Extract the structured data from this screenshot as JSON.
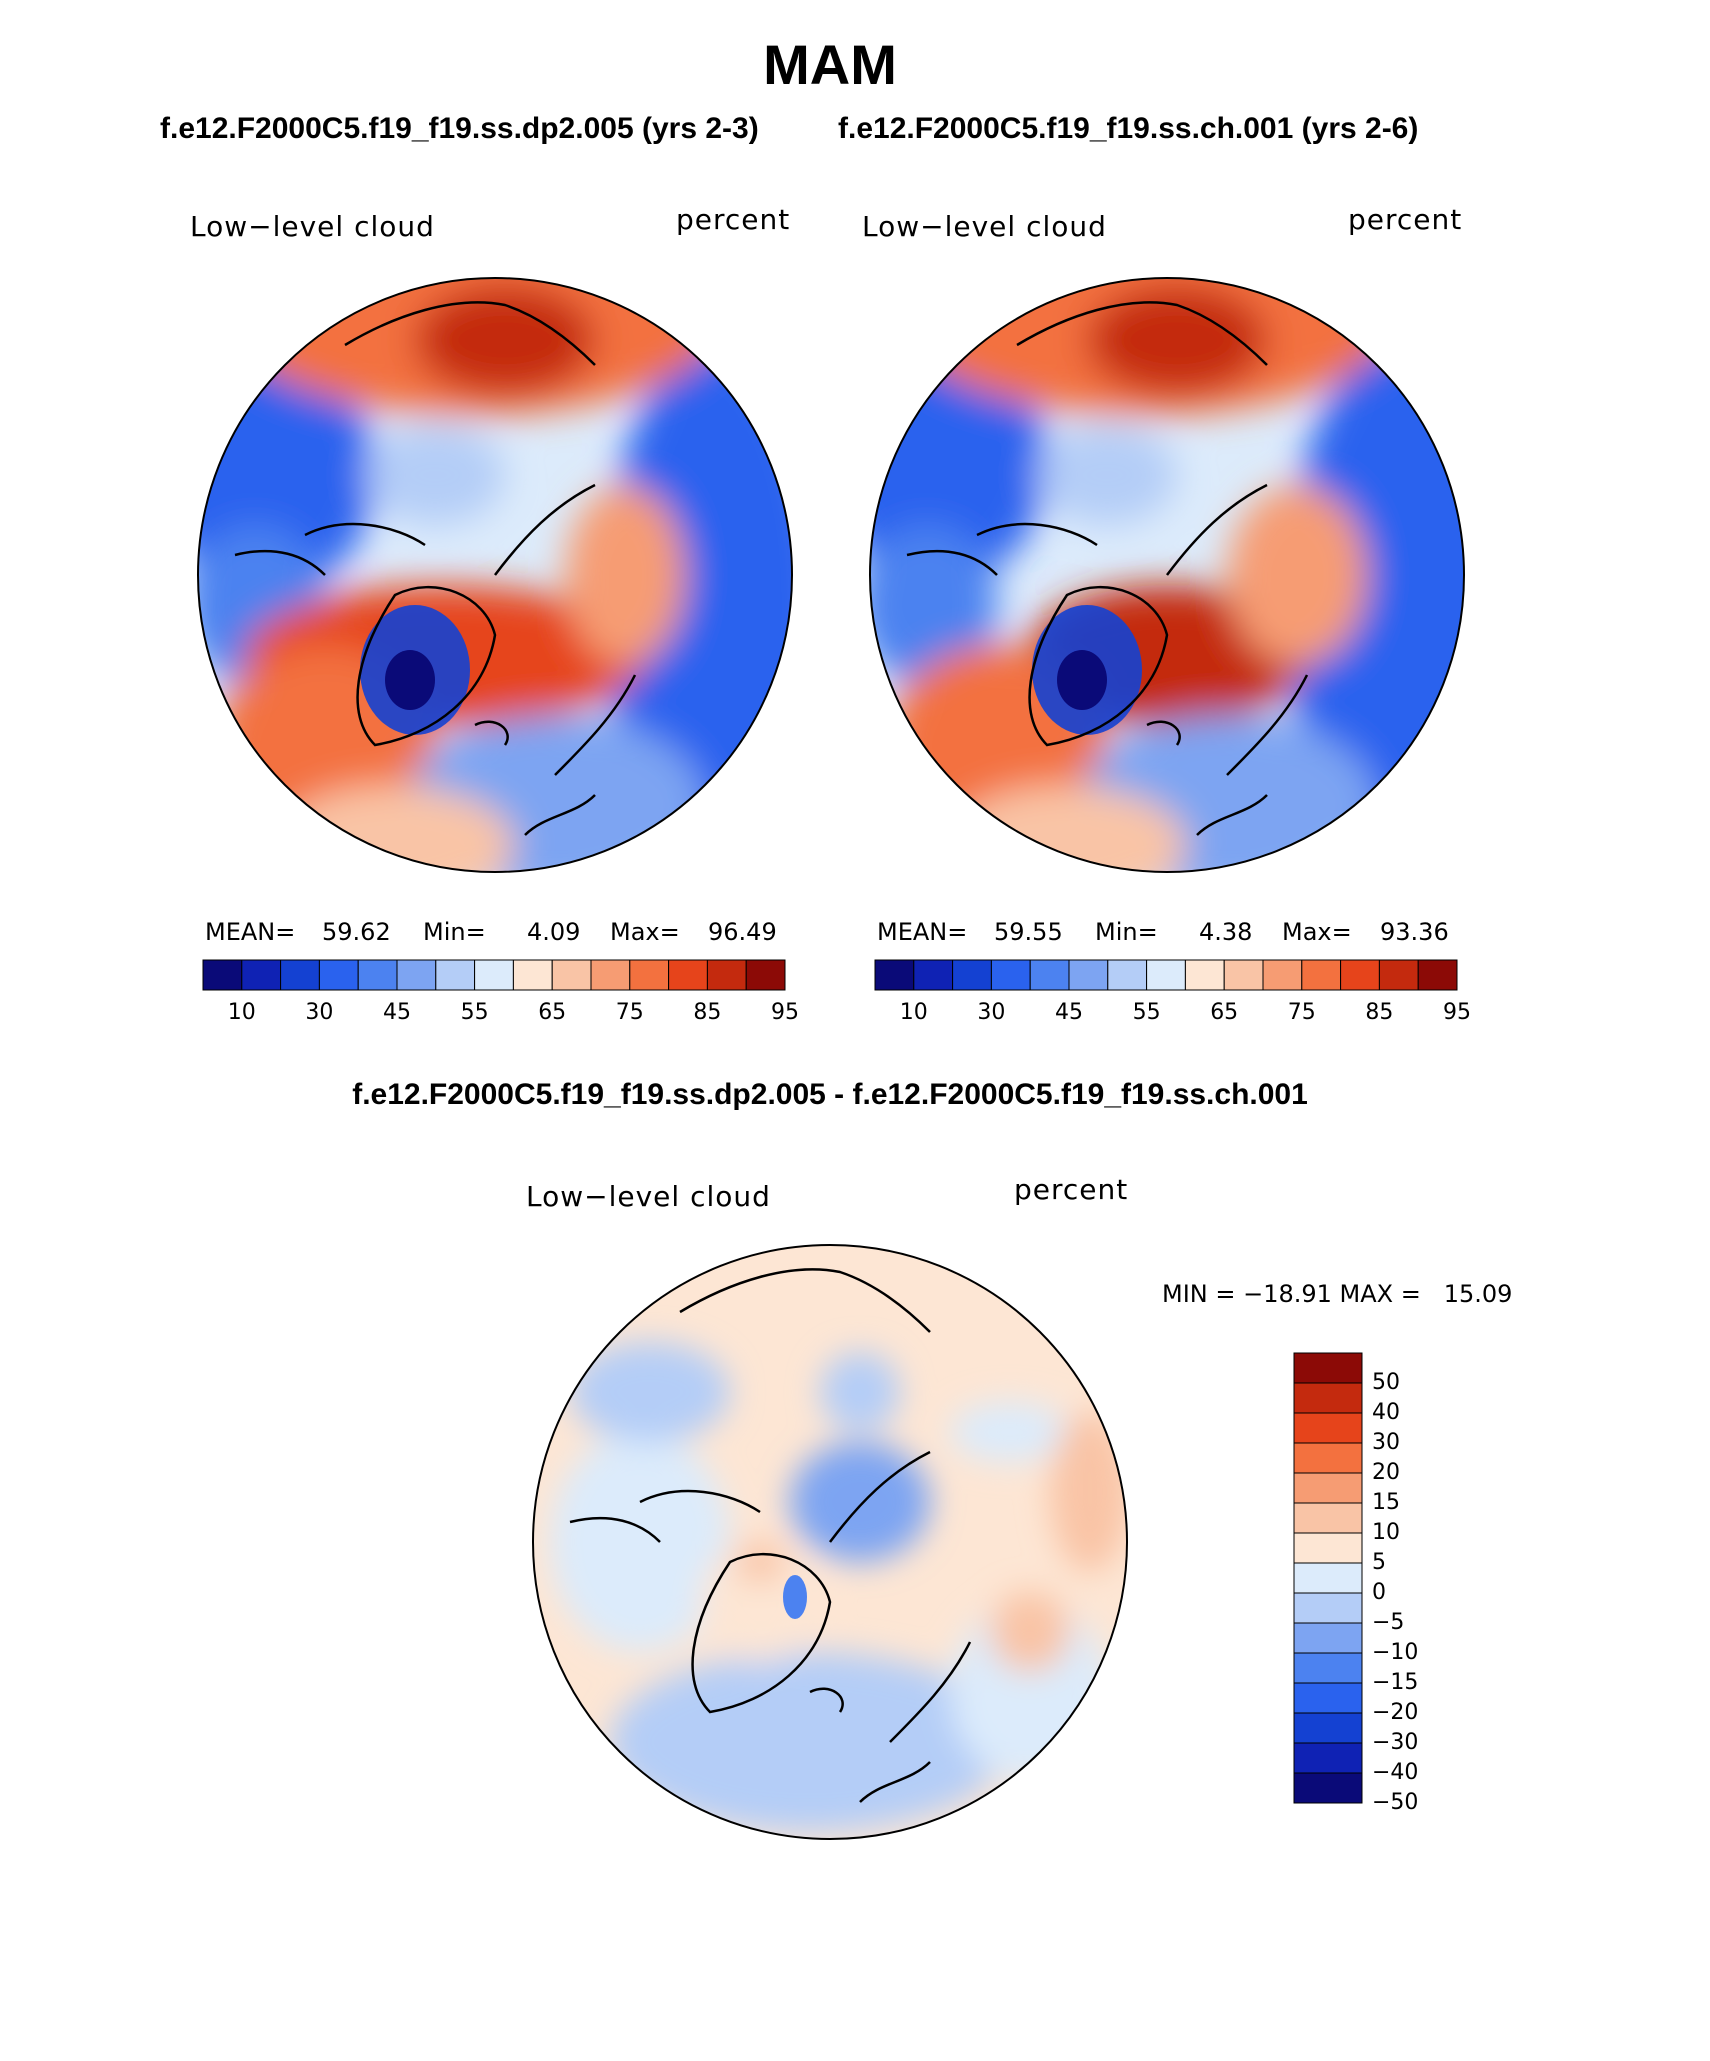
{
  "season": "MAM",
  "panels": [
    {
      "case": "f.e12.F2000C5.f19_f19.ss.dp2.005 (yrs 2-3)",
      "variable": "Low−level cloud",
      "units": "percent",
      "mean_label": "MEAN=",
      "mean": "59.62",
      "min_label": "Min=",
      "min": "4.09",
      "max_label": "Max=",
      "max": "96.49"
    },
    {
      "case": "f.e12.F2000C5.f19_f19.ss.ch.001 (yrs 2-6)",
      "variable": "Low−level cloud",
      "units": "percent",
      "mean_label": "MEAN=",
      "mean": "59.55",
      "min_label": "Min=",
      "min": "4.38",
      "max_label": "Max=",
      "max": "93.36"
    }
  ],
  "diff": {
    "title": "f.e12.F2000C5.f19_f19.ss.dp2.005 - f.e12.F2000C5.f19_f19.ss.ch.001",
    "variable": "Low−level cloud",
    "units": "percent",
    "minmax_text": "MIN = −18.91 MAX =   15.09"
  },
  "colorbar_abs": {
    "ticks": [
      "10",
      "30",
      "45",
      "55",
      "65",
      "75",
      "85",
      "95"
    ],
    "colors": [
      "#0a0a78",
      "#0f22b4",
      "#1441d2",
      "#2a62ee",
      "#4c82f0",
      "#7da4f2",
      "#b4cdf7",
      "#dcebfb",
      "#fde6d4",
      "#f9c4a6",
      "#f69c73",
      "#f3713f",
      "#e6441b",
      "#c42a0e",
      "#8c0a06"
    ]
  },
  "colorbar_diff": {
    "ticks": [
      "50",
      "40",
      "30",
      "20",
      "15",
      "10",
      "5",
      "0",
      "−5",
      "−10",
      "−15",
      "−20",
      "−30",
      "−40",
      "−50"
    ],
    "colors": [
      "#8c0a06",
      "#c42a0e",
      "#e6441b",
      "#f3713f",
      "#f69c73",
      "#f9c4a6",
      "#fde6d4",
      "#dcebfb",
      "#b4cdf7",
      "#7da4f2",
      "#4c82f0",
      "#2a62ee",
      "#1441d2",
      "#0f22b4",
      "#0a0a78"
    ]
  }
}
